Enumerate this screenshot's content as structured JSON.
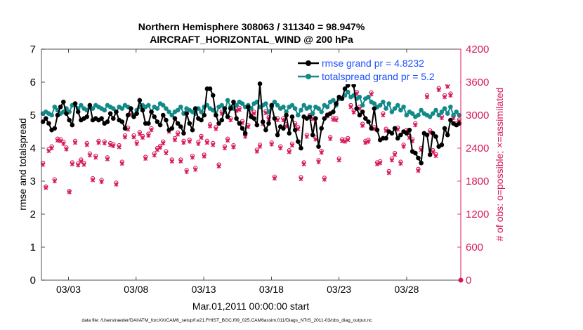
{
  "chart_data": {
    "type": "line",
    "title_line1": "Northern Hemisphere 308063 / 311340 = 98.947%",
    "title_line2": "AIRCRAFT_HORIZONTAL_WIND @ 200 hPa",
    "xlabel": "Mar.01,2011 00:00:00 start",
    "ylabel_left": "rmse and totalspread",
    "ylabel_right": "# of obs: o=possible; ×=assimilated",
    "footer": "data file: /Users/raeder/DAI/ATM_forcXX/CAM6_setup/f.e21.FHIST_BGC.f09_025.CAM6assim.011/Diags_NTrS_2011-03/obs_diag_output.nc",
    "xlim": [
      1.0,
      32.0
    ],
    "x_ticks": [
      {
        "x": 3,
        "label": "03/03"
      },
      {
        "x": 8,
        "label": "03/08"
      },
      {
        "x": 13,
        "label": "03/13"
      },
      {
        "x": 18,
        "label": "03/18"
      },
      {
        "x": 23,
        "label": "03/23"
      },
      {
        "x": 28,
        "label": "03/28"
      }
    ],
    "y_left": {
      "lim": [
        0,
        7
      ],
      "ticks": [
        "0",
        "1",
        "2",
        "3",
        "4",
        "5",
        "6",
        "7"
      ]
    },
    "y_right": {
      "lim": [
        0,
        4200
      ],
      "ticks": [
        "0",
        "600",
        "1200",
        "1800",
        "2400",
        "3000",
        "3600",
        "4200"
      ]
    },
    "colors": {
      "rmse": "#000000",
      "spread": "#138a8a",
      "obs": "#d6185a",
      "legend_text": "#1f4fff",
      "axis_right": "#d6185a"
    },
    "series": [
      {
        "name": "rmse",
        "legend": "rmse grand pr = 4.8232",
        "values": [
          4.8,
          4.9,
          4.75,
          4.55,
          4.6,
          5.0,
          5.25,
          5.4,
          5.05,
          4.85,
          4.7,
          5.35,
          5.1,
          4.85,
          4.9,
          4.95,
          5.3,
          4.85,
          4.9,
          4.85,
          4.9,
          4.75,
          4.8,
          5.05,
          4.9,
          5.1,
          4.85,
          4.8,
          4.6,
          5.0,
          5.2,
          4.95,
          5.05,
          5.45,
          5.15,
          4.75,
          4.75,
          5.1,
          4.95,
          4.8,
          4.7,
          5.0,
          4.85,
          4.55,
          4.6,
          4.9,
          4.75,
          4.65,
          4.45,
          5.05,
          4.75,
          4.55,
          5.2,
          4.9,
          4.85,
          5.0,
          5.8,
          5.8,
          5.6,
          5.0,
          4.75,
          4.85,
          5.2,
          4.95,
          5.2,
          5.4,
          4.9,
          4.75,
          4.6,
          4.45,
          5.25,
          4.95,
          4.9,
          4.7,
          5.95,
          4.8,
          4.55,
          4.75,
          5.3,
          4.9,
          4.4,
          4.65,
          4.6,
          5.0,
          4.45,
          4.95,
          4.55,
          4.2,
          4.0,
          4.95,
          4.9,
          4.95,
          4.4,
          4.9,
          4.05,
          4.6,
          4.9,
          5.0,
          5.05,
          5.1,
          5.35,
          5.55,
          5.5,
          5.8,
          5.9,
          6.2,
          5.9,
          5.2,
          5.0,
          5.1,
          4.9,
          4.8,
          4.6,
          5.2,
          4.55,
          4.25,
          4.3,
          4.3,
          4.5,
          4.45,
          4.6,
          4.3,
          4.4,
          4.5,
          4.45,
          4.55,
          3.9,
          3.85,
          3.7,
          3.55,
          4.45,
          4.4,
          3.8,
          4.45,
          4.35,
          4.05,
          4.1,
          4.6,
          4.4,
          4.85,
          4.75,
          4.7,
          4.75
        ]
      },
      {
        "name": "totalspread",
        "legend": "totalspread grand pr = 5.2",
        "values": [
          5.05,
          5.1,
          5.05,
          5.0,
          5.25,
          5.15,
          5.05,
          5.1,
          5.2,
          5.1,
          5.3,
          5.35,
          5.2,
          5.3,
          5.2,
          5.15,
          5.25,
          5.2,
          5.3,
          5.25,
          5.2,
          5.15,
          5.3,
          5.25,
          5.2,
          5.1,
          5.25,
          5.2,
          5.3,
          5.25,
          5.2,
          5.0,
          5.15,
          5.25,
          5.3,
          5.25,
          5.3,
          5.1,
          5.25,
          5.2,
          5.35,
          5.3,
          5.2,
          5.1,
          5.0,
          5.1,
          5.15,
          5.25,
          5.05,
          5.2,
          5.15,
          5.1,
          5.05,
          5.2,
          5.1,
          5.25,
          5.3,
          5.2,
          5.15,
          5.0,
          5.25,
          5.3,
          5.1,
          5.45,
          5.25,
          5.2,
          5.3,
          5.4,
          5.35,
          5.25,
          5.3,
          5.2,
          5.35,
          5.4,
          5.25,
          5.3,
          5.35,
          5.1,
          5.25,
          5.4,
          5.3,
          5.2,
          5.25,
          5.1,
          5.25,
          5.3,
          5.2,
          5.0,
          5.15,
          5.3,
          5.2,
          5.25,
          5.05,
          5.25,
          5.2,
          5.1,
          5.3,
          5.25,
          5.4,
          5.45,
          5.3,
          5.5,
          5.5,
          5.6,
          5.7,
          5.55,
          5.6,
          5.5,
          5.55,
          5.3,
          5.5,
          5.55,
          5.4,
          5.35,
          5.25,
          5.3,
          5.4,
          5.2,
          5.35,
          5.1,
          5.2,
          5.3,
          5.15,
          5.25,
          5.0,
          5.1,
          5.05,
          4.95,
          5.0,
          5.15,
          5.05,
          5.0,
          4.95,
          5.05,
          5.15,
          5.0,
          5.1,
          5.2,
          5.05,
          5.25,
          5.0,
          5.1,
          5.0
        ]
      },
      {
        "name": "obs_possible",
        "marker": "o",
        "values": [
          2130,
          1700,
          2380,
          2430,
          1830,
          2570,
          2560,
          2510,
          2410,
          1620,
          2140,
          2530,
          2120,
          2190,
          2130,
          2490,
          2300,
          1850,
          2260,
          2530,
          1820,
          2520,
          2230,
          2490,
          2470,
          1770,
          2450,
          2150,
          2630,
          2770,
          3040,
          2630,
          2510,
          2690,
          2620,
          2240,
          2660,
          2760,
          2300,
          2400,
          2440,
          2520,
          2340,
          2730,
          2190,
          2580,
          2680,
          2190,
          2530,
          2000,
          2550,
          2260,
          2040,
          2510,
          2620,
          2280,
          2530,
          2830,
          2490,
          2780,
          2100,
          3060,
          2430,
          2570,
          2940,
          2450,
          3110,
          3130,
          2890,
          2640,
          2820,
          3030,
          3060,
          2370,
          2460,
          2870,
          3070,
          2960,
          2500,
          1880,
          2940,
          2430,
          2940,
          2830,
          2360,
          2480,
          2850,
          2780,
          1870,
          2140,
          2640,
          3000,
          2960,
          2590,
          2180,
          2350,
          1860,
          3010,
          2600,
          2950,
          2940,
          2210,
          2560,
          2550,
          2580,
          3180,
          3080,
          3420,
          3150,
          2840,
          2530,
          2550,
          3410,
          2780,
          2140,
          2160,
          3030,
          2750,
          1980,
          2210,
          2310,
          2770,
          2150,
          2460,
          2730,
          2620,
          2560,
          2850,
          2020,
          2400,
          3630,
          3360,
          2720,
          2360,
          2290,
          3490,
          2980,
          3360,
          3550,
          3390,
          2980,
          2850,
          2920
        ]
      },
      {
        "name": "obs_assimilated",
        "marker": "x",
        "values": [
          2100,
          1680,
          2350,
          2400,
          1800,
          2540,
          2530,
          2480,
          2380,
          1600,
          2110,
          2500,
          2090,
          2160,
          2100,
          2460,
          2270,
          1820,
          2230,
          2500,
          1790,
          2490,
          2200,
          2460,
          2440,
          1740,
          2420,
          2120,
          2600,
          2740,
          3010,
          2600,
          2480,
          2660,
          2590,
          2210,
          2630,
          2730,
          2270,
          2370,
          2410,
          2490,
          2310,
          2700,
          2160,
          2550,
          2650,
          2160,
          2500,
          1970,
          2520,
          2230,
          2010,
          2480,
          2590,
          2250,
          2500,
          2800,
          2460,
          2750,
          2070,
          3030,
          2400,
          2540,
          2910,
          2420,
          3080,
          3100,
          2860,
          2610,
          2790,
          3000,
          3030,
          2340,
          2430,
          2840,
          3040,
          2930,
          2470,
          1850,
          2910,
          2400,
          2910,
          2800,
          2330,
          2450,
          2820,
          2750,
          1840,
          2110,
          2610,
          2970,
          2930,
          2560,
          2150,
          2320,
          1830,
          2980,
          2570,
          2920,
          2910,
          2180,
          2530,
          2520,
          2550,
          3150,
          3050,
          3390,
          3120,
          2810,
          2500,
          2520,
          3380,
          2750,
          2110,
          2130,
          3000,
          2720,
          1950,
          2180,
          2280,
          2740,
          2120,
          2430,
          2700,
          2590,
          2530,
          2820,
          1990,
          2370,
          3600,
          3330,
          2690,
          2330,
          2260,
          3460,
          2950,
          3330,
          3520,
          3360,
          2950,
          2820,
          2890
        ]
      }
    ]
  }
}
